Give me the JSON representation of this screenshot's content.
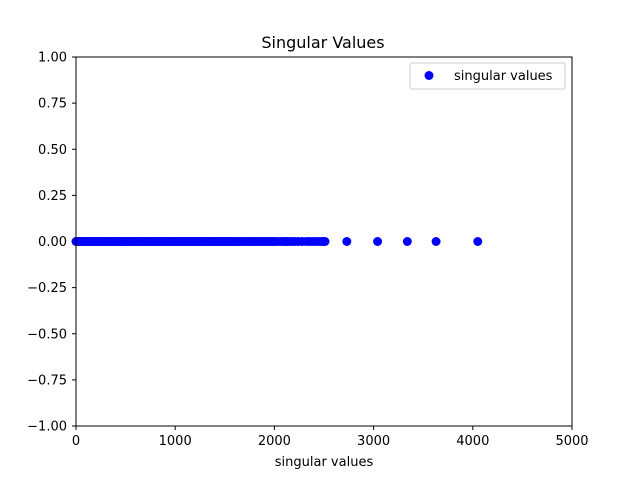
{
  "chart_data": {
    "type": "scatter",
    "title": "Singular Values",
    "xlabel": "singular values",
    "ylabel": "",
    "xlim": [
      0,
      5000
    ],
    "ylim": [
      -1.0,
      1.0
    ],
    "x_ticks": [
      0,
      1000,
      2000,
      3000,
      4000,
      5000
    ],
    "x_tick_labels": [
      "0",
      "1000",
      "2000",
      "3000",
      "4000",
      "5000"
    ],
    "y_ticks": [
      1.0,
      0.75,
      0.5,
      0.25,
      0.0,
      -0.25,
      -0.5,
      -0.75,
      -1.0
    ],
    "y_tick_labels": [
      "1.00",
      "0.75",
      "0.50",
      "0.25",
      "0.00",
      "−0.25",
      "−0.50",
      "−0.75",
      "−1.00"
    ],
    "grid": false,
    "legend_position": "top-right",
    "series": [
      {
        "name": "singular values",
        "color": "#0000ff",
        "marker": "circle",
        "x": [
          0,
          15,
          30,
          45,
          60,
          75,
          90,
          105,
          120,
          135,
          150,
          165,
          180,
          195,
          210,
          225,
          240,
          255,
          270,
          285,
          300,
          315,
          330,
          345,
          360,
          375,
          390,
          405,
          420,
          435,
          450,
          465,
          480,
          495,
          510,
          525,
          540,
          555,
          570,
          585,
          600,
          615,
          630,
          645,
          660,
          675,
          690,
          705,
          720,
          735,
          750,
          765,
          780,
          795,
          810,
          825,
          840,
          855,
          870,
          885,
          900,
          915,
          930,
          945,
          960,
          975,
          990,
          1005,
          1020,
          1035,
          1050,
          1065,
          1080,
          1095,
          1110,
          1125,
          1140,
          1155,
          1170,
          1185,
          1200,
          1215,
          1230,
          1245,
          1260,
          1275,
          1290,
          1305,
          1320,
          1335,
          1350,
          1365,
          1380,
          1395,
          1410,
          1425,
          1440,
          1455,
          1470,
          1485,
          1500,
          1515,
          1530,
          1545,
          1560,
          1575,
          1590,
          1605,
          1620,
          1640,
          1660,
          1680,
          1700,
          1720,
          1740,
          1760,
          1780,
          1800,
          1820,
          1840,
          1860,
          1880,
          1900,
          1920,
          1940,
          1960,
          1980,
          2000,
          2030,
          2060,
          2090,
          2110,
          2130,
          2150,
          2180,
          2210,
          2240,
          2280,
          2320,
          2350,
          2380,
          2410,
          2440,
          2470,
          2490,
          2510,
          2730,
          3040,
          3340,
          3630,
          4050
        ],
        "y": [
          0,
          0,
          0,
          0,
          0,
          0,
          0,
          0,
          0,
          0,
          0,
          0,
          0,
          0,
          0,
          0,
          0,
          0,
          0,
          0,
          0,
          0,
          0,
          0,
          0,
          0,
          0,
          0,
          0,
          0,
          0,
          0,
          0,
          0,
          0,
          0,
          0,
          0,
          0,
          0,
          0,
          0,
          0,
          0,
          0,
          0,
          0,
          0,
          0,
          0,
          0,
          0,
          0,
          0,
          0,
          0,
          0,
          0,
          0,
          0,
          0,
          0,
          0,
          0,
          0,
          0,
          0,
          0,
          0,
          0,
          0,
          0,
          0,
          0,
          0,
          0,
          0,
          0,
          0,
          0,
          0,
          0,
          0,
          0,
          0,
          0,
          0,
          0,
          0,
          0,
          0,
          0,
          0,
          0,
          0,
          0,
          0,
          0,
          0,
          0,
          0,
          0,
          0,
          0,
          0,
          0,
          0,
          0,
          0,
          0,
          0,
          0,
          0,
          0,
          0,
          0,
          0,
          0,
          0,
          0,
          0,
          0,
          0,
          0,
          0,
          0,
          0,
          0,
          0,
          0,
          0,
          0,
          0,
          0,
          0,
          0,
          0,
          0,
          0,
          0,
          0,
          0,
          0,
          0,
          0,
          0,
          0,
          0,
          0,
          0,
          0
        ]
      }
    ]
  }
}
